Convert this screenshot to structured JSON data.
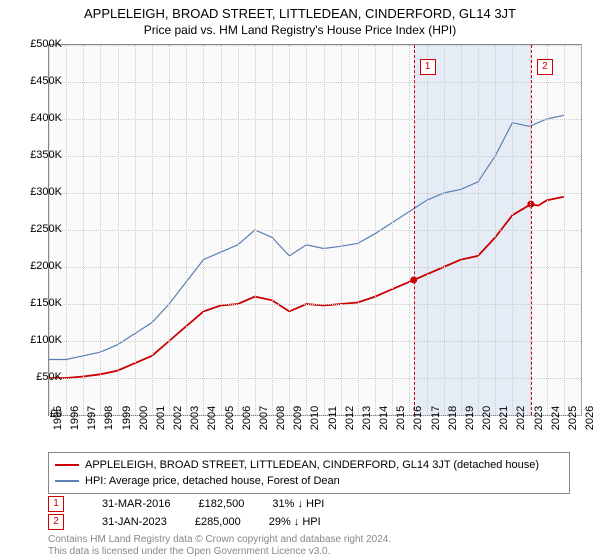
{
  "title": "APPLELEIGH, BROAD STREET, LITTLEDEAN, CINDERFORD, GL14 3JT",
  "subtitle": "Price paid vs. HM Land Registry's House Price Index (HPI)",
  "chart": {
    "type": "line",
    "background_color": "#fafafa",
    "shade_color": "#e6ecf5",
    "grid_color": "#cccccc",
    "border_color": "#888888",
    "ylim": [
      0,
      500000
    ],
    "ytick_step": 50000,
    "yticks": [
      "£0",
      "£50K",
      "£100K",
      "£150K",
      "£200K",
      "£250K",
      "£300K",
      "£350K",
      "£400K",
      "£450K",
      "£500K"
    ],
    "xlim": [
      1995,
      2026
    ],
    "xticks": [
      1995,
      1996,
      1997,
      1998,
      1999,
      2000,
      2001,
      2002,
      2003,
      2004,
      2005,
      2006,
      2007,
      2008,
      2009,
      2010,
      2011,
      2012,
      2013,
      2014,
      2015,
      2016,
      2017,
      2018,
      2019,
      2020,
      2021,
      2022,
      2023,
      2024,
      2025,
      2026
    ],
    "label_fontsize": 11,
    "series": [
      {
        "name": "property",
        "label": "APPLELEIGH, BROAD STREET, LITTLEDEAN, CINDERFORD, GL14 3JT (detached house)",
        "color": "#cc0000",
        "width": 1.8,
        "data": [
          [
            1995,
            50000
          ],
          [
            1996,
            50000
          ],
          [
            1997,
            52000
          ],
          [
            1998,
            55000
          ],
          [
            1999,
            60000
          ],
          [
            2000,
            70000
          ],
          [
            2001,
            80000
          ],
          [
            2002,
            100000
          ],
          [
            2003,
            120000
          ],
          [
            2004,
            140000
          ],
          [
            2005,
            148000
          ],
          [
            2006,
            150000
          ],
          [
            2007,
            160000
          ],
          [
            2008,
            155000
          ],
          [
            2009,
            140000
          ],
          [
            2010,
            150000
          ],
          [
            2011,
            148000
          ],
          [
            2012,
            150000
          ],
          [
            2013,
            152000
          ],
          [
            2014,
            160000
          ],
          [
            2015,
            170000
          ],
          [
            2016,
            180000
          ],
          [
            2016.25,
            182500
          ],
          [
            2017,
            190000
          ],
          [
            2018,
            200000
          ],
          [
            2019,
            210000
          ],
          [
            2020,
            215000
          ],
          [
            2021,
            240000
          ],
          [
            2022,
            270000
          ],
          [
            2023.08,
            285000
          ],
          [
            2023.5,
            283000
          ],
          [
            2024,
            290000
          ],
          [
            2025,
            295000
          ]
        ]
      },
      {
        "name": "hpi",
        "label": "HPI: Average price, detached house, Forest of Dean",
        "color": "#5b7fb5",
        "width": 1.2,
        "data": [
          [
            1995,
            75000
          ],
          [
            1996,
            75000
          ],
          [
            1997,
            80000
          ],
          [
            1998,
            85000
          ],
          [
            1999,
            95000
          ],
          [
            2000,
            110000
          ],
          [
            2001,
            125000
          ],
          [
            2002,
            150000
          ],
          [
            2003,
            180000
          ],
          [
            2004,
            210000
          ],
          [
            2005,
            220000
          ],
          [
            2006,
            230000
          ],
          [
            2007,
            250000
          ],
          [
            2008,
            240000
          ],
          [
            2009,
            215000
          ],
          [
            2010,
            230000
          ],
          [
            2011,
            225000
          ],
          [
            2012,
            228000
          ],
          [
            2013,
            232000
          ],
          [
            2014,
            245000
          ],
          [
            2015,
            260000
          ],
          [
            2016,
            275000
          ],
          [
            2017,
            290000
          ],
          [
            2018,
            300000
          ],
          [
            2019,
            305000
          ],
          [
            2020,
            315000
          ],
          [
            2021,
            350000
          ],
          [
            2022,
            395000
          ],
          [
            2023,
            390000
          ],
          [
            2024,
            400000
          ],
          [
            2025,
            405000
          ]
        ]
      }
    ],
    "markers": [
      {
        "n": "1",
        "year": 2016.25,
        "value": 182500
      },
      {
        "n": "2",
        "year": 2023.08,
        "value": 285000
      }
    ],
    "shade_range": [
      2016.25,
      2023.08
    ]
  },
  "sales": [
    {
      "n": "1",
      "date": "31-MAR-2016",
      "price": "£182,500",
      "diff": "31% ↓ HPI"
    },
    {
      "n": "2",
      "date": "31-JAN-2023",
      "price": "£285,000",
      "diff": "29% ↓ HPI"
    }
  ],
  "footer": {
    "line1": "Contains HM Land Registry data © Crown copyright and database right 2024.",
    "line2": "This data is licensed under the Open Government Licence v3.0."
  }
}
